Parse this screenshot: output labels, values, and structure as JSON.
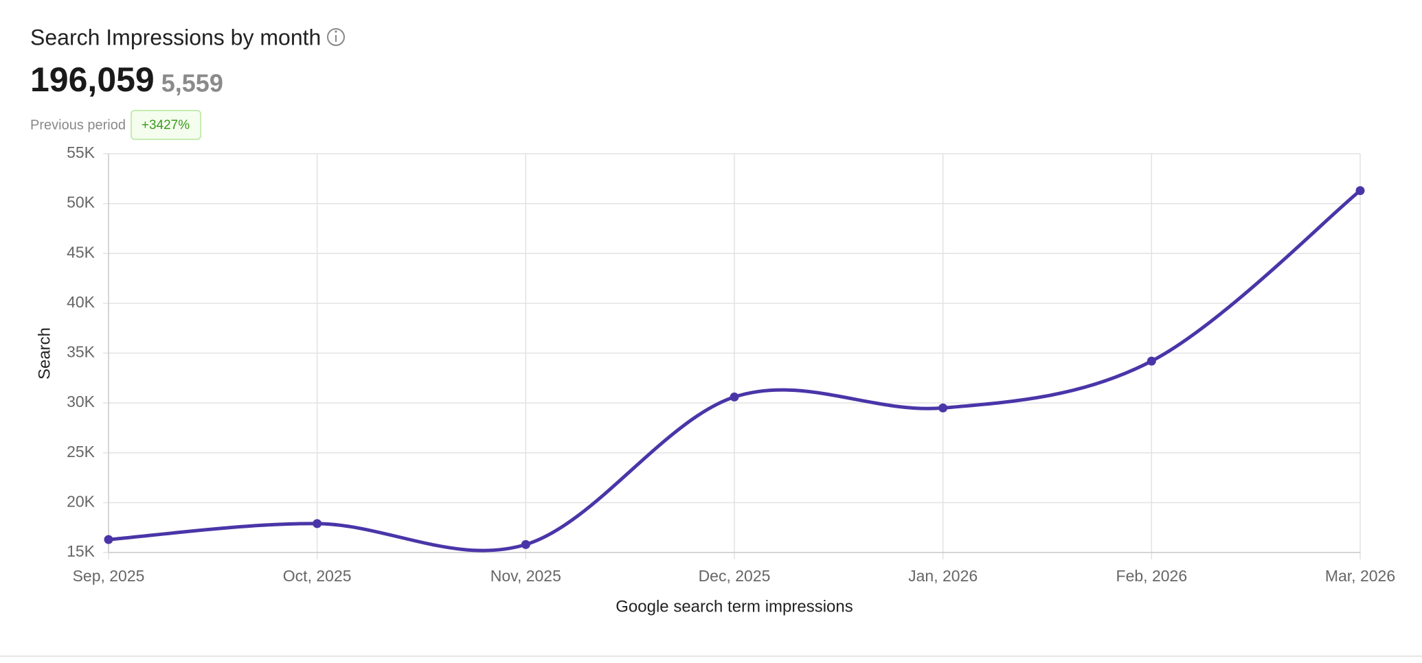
{
  "header": {
    "title": "Search Impressions by month",
    "total": "196,059",
    "previous_total": "5,559",
    "previous_label": "Previous period",
    "change": "+3427%"
  },
  "chart_data": {
    "type": "line",
    "x_label": "Google search term impressions",
    "y_label": "Search",
    "categories": [
      "Sep, 2025",
      "Oct, 2025",
      "Nov, 2025",
      "Dec, 2025",
      "Jan, 2026",
      "Feb, 2026",
      "Mar, 2026"
    ],
    "values": [
      16300,
      17900,
      15800,
      30600,
      29500,
      34200,
      51300
    ],
    "color": "#4a35a8",
    "ylim": [
      15000,
      55000
    ],
    "yticks": [
      {
        "value": 15000,
        "label": "15K"
      },
      {
        "value": 20000,
        "label": "20K"
      },
      {
        "value": 25000,
        "label": "25K"
      },
      {
        "value": 30000,
        "label": "30K"
      },
      {
        "value": 35000,
        "label": "35K"
      },
      {
        "value": 40000,
        "label": "40K"
      },
      {
        "value": 45000,
        "label": "45K"
      },
      {
        "value": 50000,
        "label": "50K"
      },
      {
        "value": 55000,
        "label": "55K"
      }
    ],
    "grid": true
  }
}
